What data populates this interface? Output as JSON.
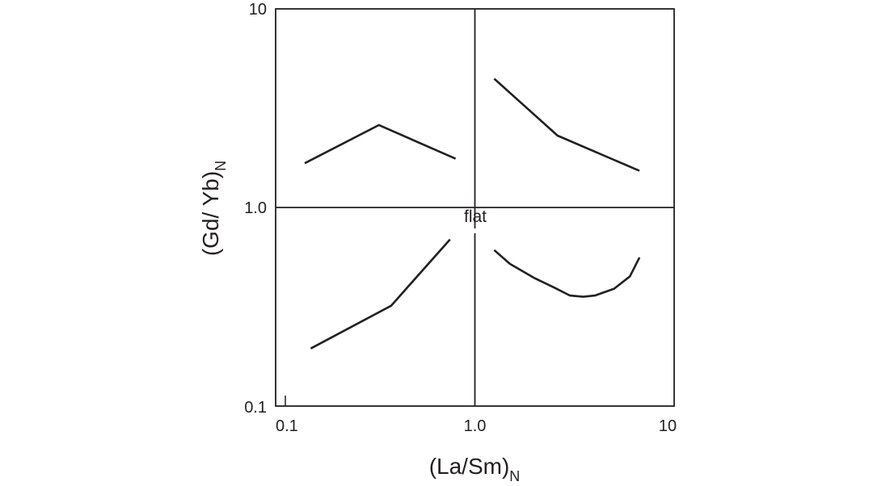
{
  "chart_data": {
    "type": "line",
    "scale": "log-log",
    "xlim": [
      0.1,
      10
    ],
    "ylim": [
      0.1,
      10
    ],
    "x_ticks": [
      "0.1",
      "1.0",
      "10"
    ],
    "y_ticks": [
      "10",
      "1.0",
      "0.1"
    ],
    "xlabel": {
      "main": "(La/Sm)",
      "sub": "N"
    },
    "ylabel": {
      "main": "(Gd/ Yb)",
      "sub": "N"
    },
    "reference_lines": {
      "x": 1.0,
      "y": 1.0
    },
    "annotations": [
      {
        "text": "flat"
      }
    ],
    "series": [
      {
        "points": [
          [
            0.14,
            1.67
          ],
          [
            0.33,
            2.6
          ],
          [
            0.8,
            1.76
          ]
        ]
      },
      {
        "points": [
          [
            1.25,
            4.45
          ],
          [
            2.6,
            2.3
          ],
          [
            6.7,
            1.53
          ]
        ]
      },
      {
        "points": [
          [
            0.15,
            0.195
          ],
          [
            0.38,
            0.32
          ],
          [
            0.75,
            0.69
          ]
        ]
      },
      {
        "points": [
          [
            1.25,
            0.61
          ],
          [
            1.5,
            0.52
          ],
          [
            2.0,
            0.44
          ],
          [
            2.5,
            0.395
          ],
          [
            3.0,
            0.36
          ],
          [
            3.5,
            0.355
          ],
          [
            4.0,
            0.36
          ],
          [
            5.0,
            0.39
          ],
          [
            6.0,
            0.45
          ],
          [
            6.7,
            0.56
          ]
        ]
      }
    ],
    "line_color": "#231f20",
    "grid": false
  }
}
